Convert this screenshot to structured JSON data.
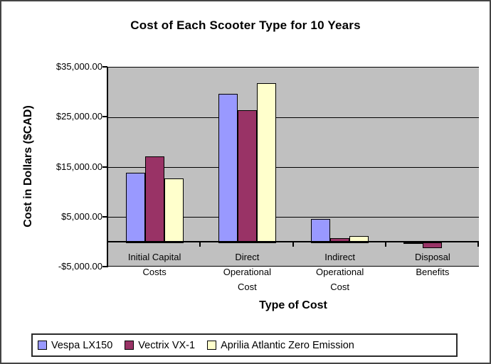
{
  "chart_data": {
    "type": "bar",
    "title": "Cost of Each Scooter Type for 10 Years",
    "xlabel": "Type of Cost",
    "ylabel": "Cost in Dollars ($CAD)",
    "categories": [
      "Initial Capital Costs",
      "Direct Operational Cost",
      "Indirect Operational Cost",
      "Disposal Benefits"
    ],
    "category_label_lines": [
      [
        "Initial Capital",
        "Costs"
      ],
      [
        "Direct",
        "Operational",
        "Cost"
      ],
      [
        "Indirect",
        "Operational",
        "Cost"
      ],
      [
        "Disposal",
        "Benefits"
      ]
    ],
    "series": [
      {
        "name": "Vespa LX150",
        "color": "#9999FF",
        "values": [
          14000,
          29700,
          4700,
          -200
        ]
      },
      {
        "name": "Vectrix VX-1",
        "color": "#993366",
        "values": [
          17200,
          26500,
          800,
          -1000
        ]
      },
      {
        "name": "Aprilia Atlantic Zero Emission",
        "color": "#FFFFCC",
        "values": [
          12800,
          31900,
          1200,
          0
        ]
      }
    ],
    "ylim": [
      -5000,
      35000
    ],
    "ytick_step": 10000,
    "ytick_labels": [
      "$35,000.00",
      "$25,000.00",
      "$15,000.00",
      "$5,000.00",
      "-$5,000.00"
    ],
    "grid": true,
    "legend_position": "bottom",
    "plot_bg": "#C0C0C0"
  }
}
